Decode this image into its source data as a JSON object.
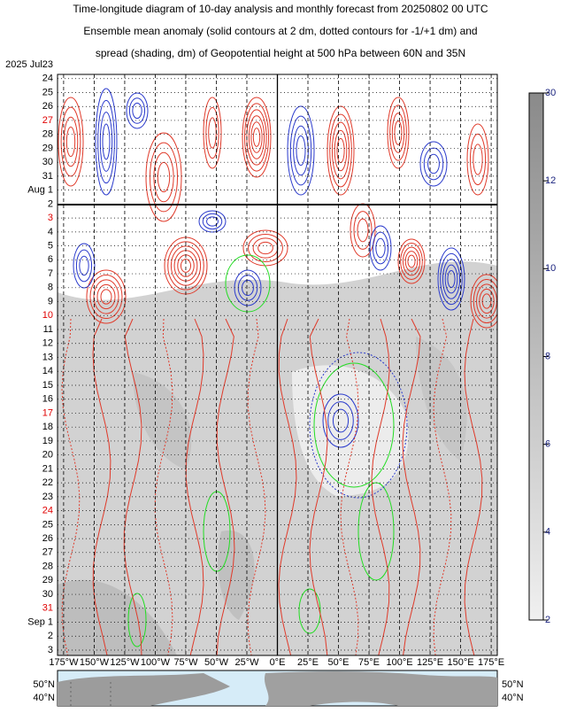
{
  "chart_data": {
    "type": "hovmoller",
    "title": [
      "Time-longitude diagram of 10-day analysis and monthly forecast from 20250802 00 UTC",
      "Ensemble mean anomaly (solid contours at 2 dm, dotted contours for -1/+1 dm) and",
      "spread (shading, dm) of Geopotential height at 500 hPa between 60N and 35N"
    ],
    "y_categories": [
      {
        "label": "2025  Jul23",
        "color": "#000000"
      },
      {
        "label": "24",
        "color": "#000000"
      },
      {
        "label": "25",
        "color": "#000000"
      },
      {
        "label": "26",
        "color": "#000000"
      },
      {
        "label": "27",
        "color": "#e00000"
      },
      {
        "label": "28",
        "color": "#000000"
      },
      {
        "label": "29",
        "color": "#000000"
      },
      {
        "label": "30",
        "color": "#000000"
      },
      {
        "label": "31",
        "color": "#000000"
      },
      {
        "label": "Aug  1",
        "color": "#000000"
      },
      {
        "label": "2",
        "color": "#000000"
      },
      {
        "label": "3",
        "color": "#e00000"
      },
      {
        "label": "4",
        "color": "#000000"
      },
      {
        "label": "5",
        "color": "#000000"
      },
      {
        "label": "6",
        "color": "#000000"
      },
      {
        "label": "7",
        "color": "#000000"
      },
      {
        "label": "8",
        "color": "#000000"
      },
      {
        "label": "9",
        "color": "#000000"
      },
      {
        "label": "10",
        "color": "#e00000"
      },
      {
        "label": "11",
        "color": "#000000"
      },
      {
        "label": "12",
        "color": "#000000"
      },
      {
        "label": "13",
        "color": "#000000"
      },
      {
        "label": "14",
        "color": "#000000"
      },
      {
        "label": "15",
        "color": "#000000"
      },
      {
        "label": "16",
        "color": "#000000"
      },
      {
        "label": "17",
        "color": "#e00000"
      },
      {
        "label": "18",
        "color": "#000000"
      },
      {
        "label": "19",
        "color": "#000000"
      },
      {
        "label": "20",
        "color": "#000000"
      },
      {
        "label": "21",
        "color": "#000000"
      },
      {
        "label": "22",
        "color": "#000000"
      },
      {
        "label": "23",
        "color": "#000000"
      },
      {
        "label": "24",
        "color": "#e00000"
      },
      {
        "label": "25",
        "color": "#000000"
      },
      {
        "label": "26",
        "color": "#000000"
      },
      {
        "label": "27",
        "color": "#000000"
      },
      {
        "label": "28",
        "color": "#000000"
      },
      {
        "label": "29",
        "color": "#000000"
      },
      {
        "label": "30",
        "color": "#000000"
      },
      {
        "label": "31",
        "color": "#e00000"
      },
      {
        "label": "Sep  1",
        "color": "#000000"
      },
      {
        "label": "2",
        "color": "#000000"
      },
      {
        "label": "3",
        "color": "#000000"
      }
    ],
    "xlim": [
      -180,
      180
    ],
    "xticks": [
      {
        "value": -175,
        "label": "175°W"
      },
      {
        "value": -150,
        "label": "150°W"
      },
      {
        "value": -125,
        "label": "125°W"
      },
      {
        "value": -100,
        "label": "100°W"
      },
      {
        "value": -75,
        "label": "75°W"
      },
      {
        "value": -50,
        "label": "50°W"
      },
      {
        "value": -25,
        "label": "25°W"
      },
      {
        "value": 0,
        "label": "0°E"
      },
      {
        "value": 25,
        "label": "25°E"
      },
      {
        "value": 50,
        "label": "50°E"
      },
      {
        "value": 75,
        "label": "75°E"
      },
      {
        "value": 100,
        "label": "100°E"
      },
      {
        "value": 125,
        "label": "125°E"
      },
      {
        "value": 150,
        "label": "150°E"
      },
      {
        "value": 175,
        "label": "175°E"
      }
    ],
    "colorbar_ticks": [
      2,
      4,
      6,
      8,
      10,
      12,
      30
    ],
    "map_lat_labels": [
      "50°N",
      "40°N"
    ]
  }
}
